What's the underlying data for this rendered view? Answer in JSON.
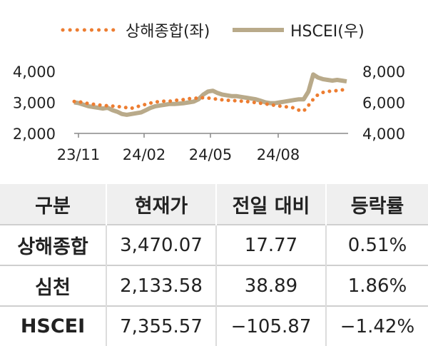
{
  "chart_data": {
    "type": "line",
    "legend_position": "top",
    "x_tick_labels": [
      "23/11",
      "24/02",
      "24/05",
      "24/08"
    ],
    "y_left": {
      "ticks": [
        "2,000",
        "3,000",
        "4,000"
      ],
      "range": [
        2000,
        4000
      ]
    },
    "y_right": {
      "ticks": [
        "4,000",
        "6,000",
        "8,000"
      ],
      "range": [
        4000,
        8000
      ]
    },
    "series": [
      {
        "name": "상해종합(좌)",
        "axis": "left",
        "style": "dotted",
        "color": "#ed7d31",
        "values": [
          3030,
          3020,
          2990,
          2960,
          2940,
          2920,
          2900,
          2890,
          2880,
          2870,
          2850,
          2830,
          2810,
          2860,
          2890,
          2940,
          2980,
          3010,
          3030,
          3040,
          3040,
          3060,
          3080,
          3090,
          3120,
          3130,
          3140,
          3150,
          3140,
          3120,
          3100,
          3080,
          3070,
          3060,
          3050,
          3040,
          3030,
          3010,
          2990,
          2970,
          2950,
          2930,
          2900,
          2880,
          2860,
          2850,
          2820,
          2750,
          2720,
          2900,
          3100,
          3250,
          3320,
          3350,
          3370,
          3380,
          3400,
          3420
        ]
      },
      {
        "name": "HSCEI(우)",
        "axis": "right",
        "style": "solid",
        "color": "#b9aa8a",
        "values": [
          6000,
          5950,
          5850,
          5750,
          5700,
          5650,
          5600,
          5650,
          5500,
          5400,
          5250,
          5200,
          5250,
          5300,
          5350,
          5500,
          5650,
          5750,
          5800,
          5850,
          5900,
          5900,
          5920,
          5950,
          6000,
          6050,
          6200,
          6500,
          6700,
          6750,
          6600,
          6500,
          6450,
          6400,
          6400,
          6350,
          6300,
          6250,
          6200,
          6100,
          6000,
          5950,
          5950,
          6000,
          6050,
          6100,
          6150,
          6200,
          6200,
          6700,
          7800,
          7600,
          7500,
          7450,
          7400,
          7450,
          7400,
          7350
        ]
      }
    ]
  },
  "table": {
    "headers": [
      "구분",
      "현재가",
      "전일 대비",
      "등락률"
    ],
    "rows": [
      [
        "상해종합",
        "3,470.07",
        "17.77",
        "0.51%"
      ],
      [
        "심천",
        "2,133.58",
        "38.89",
        "1.86%"
      ],
      [
        "HSCEI",
        "7,355.57",
        "−105.87",
        "−1.42%"
      ]
    ]
  }
}
